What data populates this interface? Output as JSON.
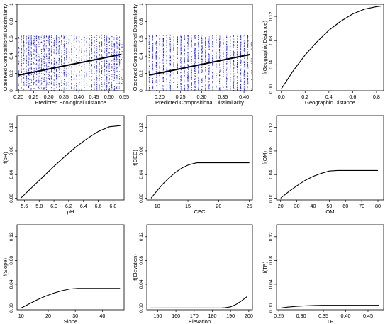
{
  "chart_data": [
    {
      "type": "scatter",
      "xlabel": "Predicted Ecological Distance",
      "ylabel": "Observed Compositional Dissimilarity",
      "xlim": [
        0.195,
        0.55
      ],
      "ylim": [
        0,
        1
      ],
      "xticks": [
        0.2,
        0.25,
        0.3,
        0.35,
        0.4,
        0.45,
        0.5,
        0.55
      ],
      "xtick_labels": [
        "0.20",
        "0.25",
        "0.30",
        "0.35",
        "0.40",
        "0.45",
        "0.50",
        "0.55"
      ],
      "yticks": [
        0,
        0.2,
        0.4,
        0.6,
        0.8,
        1
      ],
      "ytick_labels": [
        "0",
        "0.2",
        "0.4",
        "0.6",
        "0.8",
        "1"
      ],
      "points_color": "#1a1aff",
      "points_y_range": [
        0.0,
        0.65
      ],
      "points_x_range": [
        0.2,
        0.54
      ],
      "fit_line": [
        [
          0.2,
          0.18
        ],
        [
          0.54,
          0.42
        ]
      ]
    },
    {
      "type": "scatter",
      "xlabel": "Predicted Compositional Dissimilarity",
      "ylabel": "Observed Compositional Dissimilarity",
      "xlim": [
        0.17,
        0.42
      ],
      "ylim": [
        0,
        1
      ],
      "xticks": [
        0.2,
        0.25,
        0.3,
        0.35,
        0.4
      ],
      "xtick_labels": [
        "0.20",
        "0.25",
        "0.30",
        "0.35",
        "0.40"
      ],
      "yticks": [
        0,
        0.2,
        0.4,
        0.6,
        0.8,
        1
      ],
      "ytick_labels": [
        "0",
        "0.2",
        "0.4",
        "0.6",
        "0.8",
        "1"
      ],
      "points_color": "#1a1aff",
      "points_y_range": [
        0.0,
        0.65
      ],
      "points_x_range": [
        0.175,
        0.415
      ],
      "fit_line": [
        [
          0.175,
          0.18
        ],
        [
          0.415,
          0.42
        ]
      ]
    },
    {
      "type": "line",
      "xlabel": "Geographic Distance",
      "ylabel": "f(Geographic Distance)",
      "xlim": [
        -0.04,
        0.86
      ],
      "ylim": [
        -0.003,
        0.14
      ],
      "xticks": [
        0.0,
        0.2,
        0.4,
        0.6,
        0.8
      ],
      "xtick_labels": [
        "0.0",
        "0.2",
        "0.4",
        "0.6",
        "0.8"
      ],
      "yticks": [
        0.0,
        0.04,
        0.08,
        0.12
      ],
      "ytick_labels": [
        "0.00",
        "0.04",
        "0.08",
        "0.12"
      ],
      "x": [
        0.0,
        0.1,
        0.2,
        0.3,
        0.4,
        0.5,
        0.6,
        0.7,
        0.8,
        0.84
      ],
      "y": [
        0.0,
        0.03,
        0.056,
        0.078,
        0.097,
        0.112,
        0.124,
        0.132,
        0.136,
        0.137
      ]
    },
    {
      "type": "line",
      "xlabel": "pH",
      "ylabel": "f(pH)",
      "xlim": [
        5.5,
        6.95
      ],
      "ylim": [
        -0.003,
        0.14
      ],
      "xticks": [
        5.6,
        5.8,
        6.0,
        6.2,
        6.4,
        6.6,
        6.8
      ],
      "xtick_labels": [
        "5.6",
        "5.8",
        "6.0",
        "6.2",
        "6.4",
        "6.6",
        "6.8"
      ],
      "yticks": [
        0.0,
        0.04,
        0.08,
        0.12
      ],
      "ytick_labels": [
        "0.00",
        "0.04",
        "0.08",
        "0.12"
      ],
      "x": [
        5.55,
        5.7,
        5.85,
        6.0,
        6.15,
        6.3,
        6.45,
        6.6,
        6.75,
        6.9
      ],
      "y": [
        0.0,
        0.018,
        0.036,
        0.054,
        0.071,
        0.087,
        0.101,
        0.113,
        0.121,
        0.123
      ]
    },
    {
      "type": "line",
      "xlabel": "CEC",
      "ylabel": "f(CEC)",
      "xlim": [
        8.3,
        25.5
      ],
      "ylim": [
        -0.003,
        0.14
      ],
      "xticks": [
        10,
        15,
        20,
        25
      ],
      "xtick_labels": [
        "10",
        "15",
        "20",
        "25"
      ],
      "yticks": [
        0.0,
        0.04,
        0.08,
        0.12
      ],
      "ytick_labels": [
        "0.00",
        "0.04",
        "0.08",
        "0.12"
      ],
      "x": [
        9,
        10,
        11,
        12,
        13,
        14,
        15,
        16,
        16.5,
        17,
        20,
        25
      ],
      "y": [
        0.0,
        0.013,
        0.025,
        0.035,
        0.044,
        0.051,
        0.056,
        0.059,
        0.06,
        0.06,
        0.06,
        0.06
      ]
    },
    {
      "type": "line",
      "xlabel": "OM",
      "ylabel": "f(OM)",
      "xlim": [
        17.5,
        83.5
      ],
      "ylim": [
        -0.003,
        0.14
      ],
      "xticks": [
        20,
        30,
        40,
        50,
        60,
        70,
        80
      ],
      "xtick_labels": [
        "20",
        "30",
        "40",
        "50",
        "60",
        "70",
        "80"
      ],
      "yticks": [
        0.0,
        0.04,
        0.08,
        0.12
      ],
      "ytick_labels": [
        "0.00",
        "0.04",
        "0.08",
        "0.12"
      ],
      "x": [
        20,
        25,
        30,
        35,
        40,
        45,
        50,
        55,
        60,
        70,
        80
      ],
      "y": [
        0.0,
        0.011,
        0.021,
        0.03,
        0.037,
        0.042,
        0.046,
        0.047,
        0.047,
        0.047,
        0.047
      ]
    },
    {
      "type": "line",
      "xlabel": "Slope",
      "ylabel": "f(Slope)",
      "xlim": [
        8.5,
        48
      ],
      "ylim": [
        -0.003,
        0.14
      ],
      "xticks": [
        10,
        20,
        30,
        40
      ],
      "xtick_labels": [
        "10",
        "20",
        "30",
        "40"
      ],
      "yticks": [
        0.0,
        0.04,
        0.08,
        0.12
      ],
      "ytick_labels": [
        "0.00",
        "0.04",
        "0.08",
        "0.12"
      ],
      "x": [
        10,
        13,
        16,
        19,
        22,
        25,
        28,
        31,
        35,
        40,
        46.5
      ],
      "y": [
        0.0,
        0.007,
        0.014,
        0.02,
        0.025,
        0.029,
        0.032,
        0.033,
        0.033,
        0.033,
        0.033
      ]
    },
    {
      "type": "line",
      "xlabel": "Elevation",
      "ylabel": "f(Elevation)",
      "xlim": [
        144,
        202
      ],
      "ylim": [
        -0.003,
        0.14
      ],
      "xticks": [
        150,
        160,
        170,
        180,
        190,
        200
      ],
      "xtick_labels": [
        "150",
        "160",
        "170",
        "180",
        "190",
        "200"
      ],
      "yticks": [
        0.0,
        0.04,
        0.08,
        0.12
      ],
      "ytick_labels": [
        "0.00",
        "0.04",
        "0.08",
        "0.12"
      ],
      "x": [
        146,
        160,
        170,
        180,
        185,
        187,
        190,
        193,
        196,
        199
      ],
      "y": [
        0.0,
        0.0,
        0.0,
        0.0,
        0.0,
        0.0005,
        0.002,
        0.006,
        0.012,
        0.019
      ]
    },
    {
      "type": "line",
      "xlabel": "TP",
      "ylabel": "f(TP)",
      "xlim": [
        0.245,
        0.485
      ],
      "ylim": [
        -0.003,
        0.14
      ],
      "xticks": [
        0.25,
        0.3,
        0.35,
        0.4,
        0.45
      ],
      "xtick_labels": [
        "0.25",
        "0.30",
        "0.35",
        "0.40",
        "0.45"
      ],
      "yticks": [
        0.0,
        0.04,
        0.08,
        0.12
      ],
      "ytick_labels": [
        "0.00",
        "0.04",
        "0.08",
        "0.12"
      ],
      "x": [
        0.255,
        0.27,
        0.29,
        0.31,
        0.33,
        0.35,
        0.37,
        0.4,
        0.44,
        0.475
      ],
      "y": [
        0.0,
        0.0015,
        0.0028,
        0.0037,
        0.0042,
        0.0045,
        0.0046,
        0.0046,
        0.0046,
        0.0046
      ]
    }
  ]
}
